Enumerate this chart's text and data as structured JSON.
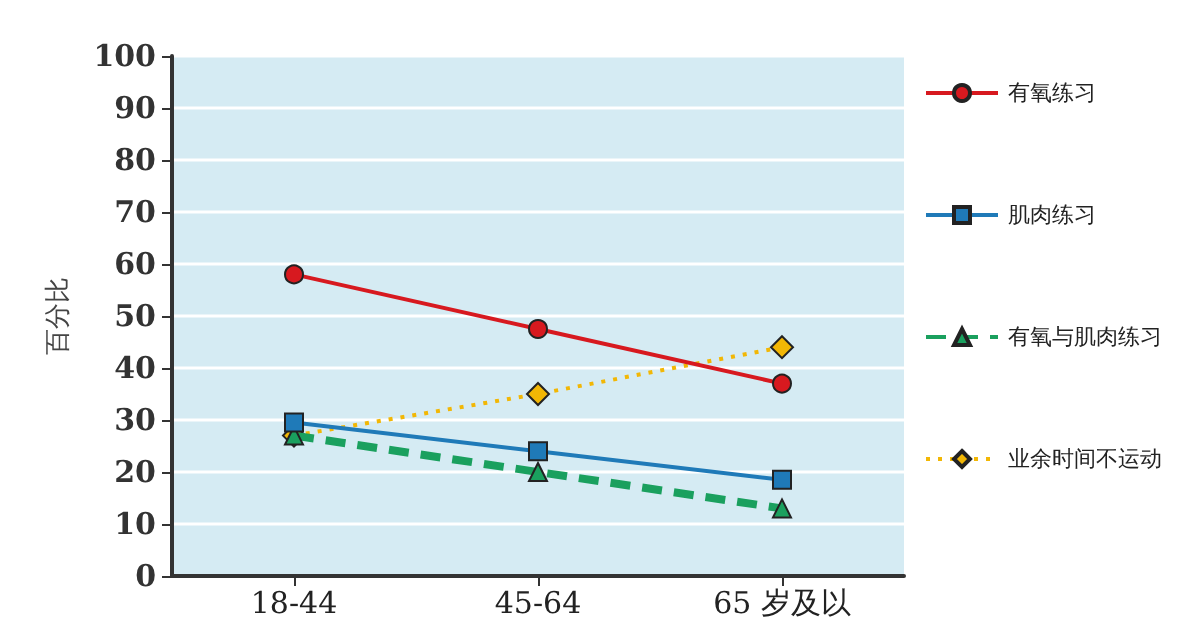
{
  "chart_data": {
    "type": "line",
    "ylabel": "百分比",
    "categories": [
      "18-44",
      "45-64",
      "65 岁及以"
    ],
    "series": [
      {
        "name": "有氧练习",
        "color": "#d7191f",
        "values": [
          58,
          47.5,
          37
        ],
        "marker": "circle",
        "line_style": "solid"
      },
      {
        "name": "肌肉练习",
        "color": "#1f7ab8",
        "values": [
          29.5,
          24,
          18.5
        ],
        "marker": "square",
        "line_style": "solid"
      },
      {
        "name": "有氧与肌肉练习",
        "color": "#1aa05e",
        "values": [
          27,
          20,
          13
        ],
        "marker": "triangle",
        "line_style": "dashed"
      },
      {
        "name": "业余时间不运动",
        "color": "#f2b705",
        "values": [
          27,
          35,
          44
        ],
        "marker": "diamond",
        "line_style": "dotted"
      }
    ],
    "ylim": [
      0,
      100
    ],
    "yticks": [
      0,
      10,
      20,
      30,
      40,
      50,
      60,
      70,
      80,
      90,
      100
    ],
    "grid": "y",
    "legend": "right"
  }
}
